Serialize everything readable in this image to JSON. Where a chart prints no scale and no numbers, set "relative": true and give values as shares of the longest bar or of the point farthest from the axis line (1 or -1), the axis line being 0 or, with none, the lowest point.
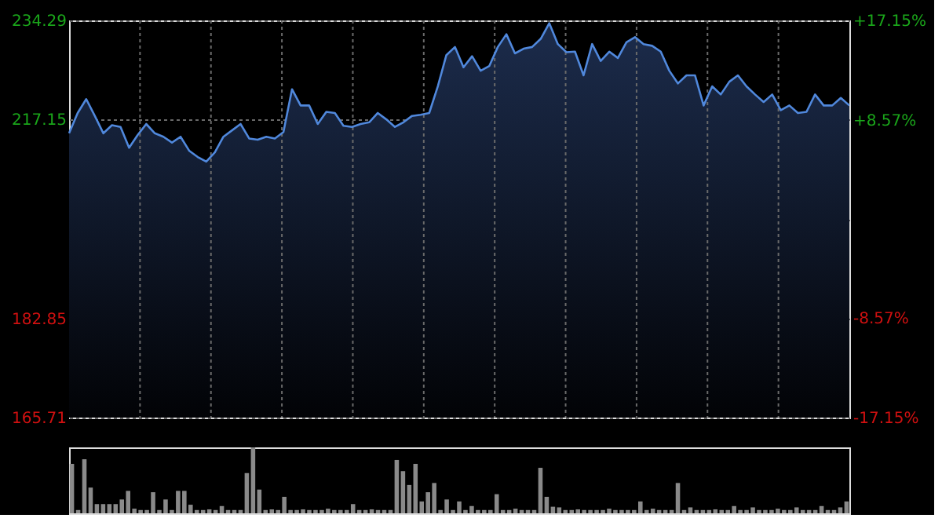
{
  "chart_data": [
    {
      "type": "area",
      "categories": [
        null,
        null,
        null,
        null,
        null,
        null,
        null,
        null,
        null,
        null,
        null,
        null,
        null,
        null,
        null,
        null,
        null,
        null,
        null,
        null,
        null,
        null,
        null,
        null,
        null,
        null,
        null,
        null,
        null,
        null,
        null,
        null,
        null,
        null,
        null,
        null,
        null,
        null,
        null,
        null,
        null,
        null,
        null,
        null,
        null,
        null,
        null,
        null,
        null,
        null,
        null,
        null,
        null,
        null,
        null,
        null,
        null,
        null,
        null,
        null,
        null,
        null,
        null,
        null,
        null,
        null,
        null,
        null,
        null,
        null,
        null,
        null,
        null,
        null,
        null,
        null,
        null,
        null,
        null,
        null,
        null,
        null,
        null,
        null,
        null,
        null,
        null,
        null,
        null,
        null,
        null,
        null
      ],
      "values": [
        214.8,
        218.3,
        220.7,
        217.8,
        214.8,
        216.2,
        215.9,
        212.3,
        214.5,
        216.4,
        214.8,
        214.2,
        213.2,
        214.2,
        211.8,
        210.7,
        209.9,
        211.5,
        214.2,
        215.3,
        216.4,
        213.9,
        213.7,
        214.2,
        213.9,
        215.0,
        222.4,
        219.6,
        219.6,
        216.4,
        218.5,
        218.3,
        216.1,
        215.9,
        216.4,
        216.7,
        218.3,
        217.2,
        215.9,
        216.7,
        217.8,
        218.0,
        218.3,
        222.9,
        228.3,
        229.7,
        226.2,
        228.1,
        225.6,
        226.4,
        229.7,
        231.9,
        228.6,
        229.4,
        229.7,
        231.1,
        233.8,
        230.2,
        228.8,
        228.9,
        224.8,
        230.2,
        227.3,
        228.9,
        227.8,
        230.5,
        231.4,
        230.2,
        229.9,
        228.9,
        225.6,
        223.4,
        224.8,
        224.8,
        219.6,
        222.9,
        221.5,
        223.7,
        224.8,
        222.9,
        221.5,
        220.2,
        221.5,
        218.8,
        219.6,
        218.3,
        218.5,
        221.5,
        219.6,
        219.6,
        220.9,
        219.6
      ],
      "color": "#5088dc",
      "ylim": [
        165.71,
        234.29
      ],
      "yticks": [
        165.71,
        182.85,
        {
          "value": 200,
          "label": null
        },
        217.15,
        234.29
      ],
      "y2lim": [
        -17.15,
        17.15
      ],
      "y2ticks": [
        {
          "value": -17.15,
          "label": "-17.15%"
        },
        {
          "value": -8.57,
          "label": "-8.57%"
        },
        {
          "value": 0,
          "label": null
        },
        {
          "value": 8.57,
          "label": "+8.57%"
        },
        {
          "value": 17.15,
          "label": "+17.15%"
        }
      ],
      "grid": true,
      "tick_labels": "y"
    },
    {
      "type": "bar",
      "relative": true,
      "color": "#8a8a8a",
      "tick_labels": false,
      "categories": [
        null,
        null,
        null,
        null,
        null,
        null,
        null,
        null,
        null,
        null,
        null,
        null,
        null,
        null,
        null,
        null,
        null,
        null,
        null,
        null,
        null,
        null,
        null,
        null,
        null,
        null,
        null,
        null,
        null,
        null,
        null,
        null,
        null,
        null,
        null,
        null,
        null,
        null,
        null,
        null,
        null,
        null,
        null,
        null,
        null,
        null,
        null,
        null,
        null,
        null,
        null,
        null,
        null,
        null,
        null,
        null,
        null,
        null,
        null,
        null,
        null,
        null,
        null,
        null,
        null,
        null,
        null,
        null,
        null,
        null,
        null,
        null,
        null,
        null,
        null,
        null,
        null,
        null,
        null,
        null,
        null,
        null,
        null,
        null,
        null,
        null,
        null,
        null,
        null,
        null,
        null,
        null,
        null,
        null,
        null,
        null,
        null,
        null,
        null,
        null,
        null,
        null,
        null,
        null,
        null,
        null,
        null,
        null,
        null,
        null,
        null,
        null,
        null,
        null,
        null,
        null,
        null,
        null,
        null,
        null,
        null,
        null,
        null,
        null,
        null
      ],
      "values": [
        0.75,
        0.05,
        0.82,
        0.39,
        0.14,
        0.14,
        0.14,
        0.14,
        0.21,
        0.34,
        0.07,
        0.05,
        0.05,
        0.32,
        0.05,
        0.21,
        0.05,
        0.34,
        0.34,
        0.13,
        0.05,
        0.05,
        0.06,
        0.05,
        0.11,
        0.05,
        0.05,
        0.05,
        0.61,
        1.0,
        0.36,
        0.05,
        0.06,
        0.05,
        0.25,
        0.05,
        0.05,
        0.06,
        0.05,
        0.05,
        0.05,
        0.07,
        0.05,
        0.05,
        0.05,
        0.14,
        0.05,
        0.05,
        0.06,
        0.05,
        0.05,
        0.05,
        0.81,
        0.64,
        0.43,
        0.75,
        0.18,
        0.32,
        0.46,
        0.05,
        0.21,
        0.05,
        0.18,
        0.05,
        0.11,
        0.05,
        0.05,
        0.05,
        0.29,
        0.05,
        0.05,
        0.07,
        0.05,
        0.05,
        0.05,
        0.69,
        0.25,
        0.1,
        0.09,
        0.05,
        0.05,
        0.06,
        0.05,
        0.05,
        0.05,
        0.05,
        0.07,
        0.05,
        0.05,
        0.05,
        0.05,
        0.18,
        0.05,
        0.07,
        0.05,
        0.05,
        0.05,
        0.46,
        0.05,
        0.09,
        0.05,
        0.05,
        0.05,
        0.06,
        0.05,
        0.05,
        0.11,
        0.05,
        0.05,
        0.09,
        0.05,
        0.05,
        0.05,
        0.07,
        0.05,
        0.05,
        0.09,
        0.05,
        0.05,
        0.05,
        0.11,
        0.05,
        0.05,
        0.09,
        0.18
      ]
    }
  ]
}
